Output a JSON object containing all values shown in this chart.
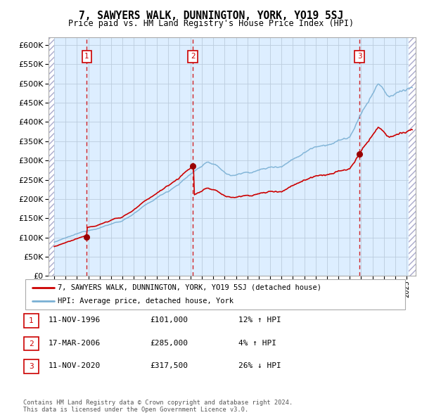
{
  "title": "7, SAWYERS WALK, DUNNINGTON, YORK, YO19 5SJ",
  "subtitle": "Price paid vs. HM Land Registry's House Price Index (HPI)",
  "legend_line1": "7, SAWYERS WALK, DUNNINGTON, YORK, YO19 5SJ (detached house)",
  "legend_line2": "HPI: Average price, detached house, York",
  "sale_prices": [
    101000,
    285000,
    317500
  ],
  "sale_labels": [
    "1",
    "2",
    "3"
  ],
  "vline_x": [
    1996.87,
    2006.21,
    2020.87
  ],
  "table_data": [
    [
      "1",
      "11-NOV-1996",
      "£101,000",
      "12% ↑ HPI"
    ],
    [
      "2",
      "17-MAR-2006",
      "£285,000",
      "4% ↑ HPI"
    ],
    [
      "3",
      "11-NOV-2020",
      "£317,500",
      "26% ↓ HPI"
    ]
  ],
  "footer": "Contains HM Land Registry data © Crown copyright and database right 2024.\nThis data is licensed under the Open Government Licence v3.0.",
  "red_color": "#cc0000",
  "blue_color": "#7ab0d4",
  "bg_color": "#ddeeff",
  "grid_color": "#bbccdd",
  "vline_color": "#cc0000",
  "ylim": [
    0,
    620000
  ],
  "yticks": [
    0,
    50000,
    100000,
    150000,
    200000,
    250000,
    300000,
    350000,
    400000,
    450000,
    500000,
    550000,
    600000
  ],
  "xlim_start": 1993.5,
  "xlim_end": 2025.8,
  "data_start": 1994.0,
  "data_end": 2025.0
}
